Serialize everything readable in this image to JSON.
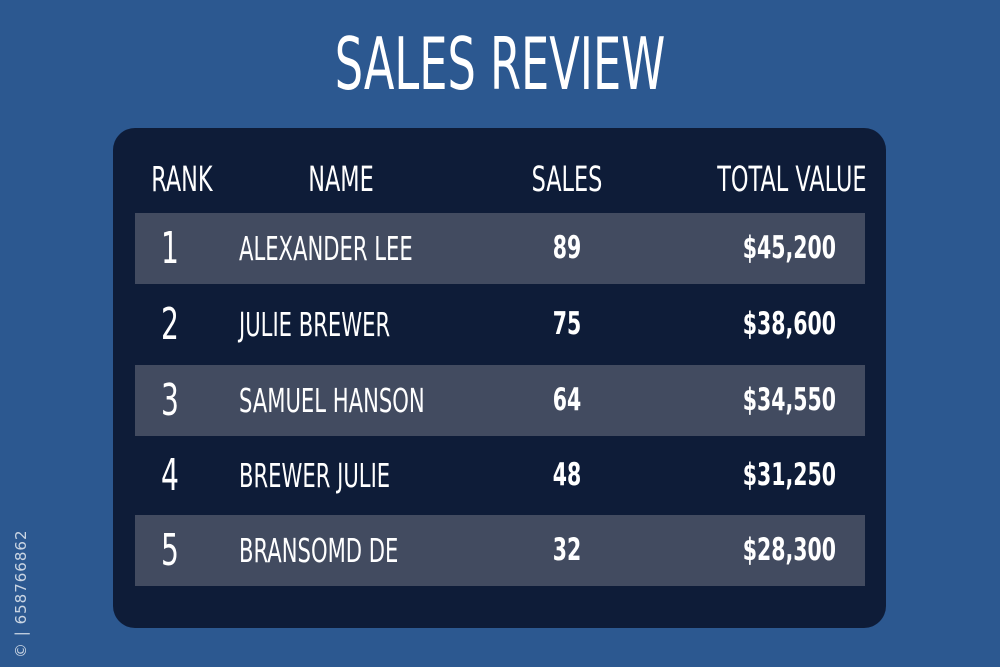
{
  "colors": {
    "background": "#2c5890",
    "panel": "#0e1c38",
    "row_highlight": "#424b60",
    "text": "#ffffff"
  },
  "title": "SALES REVIEW",
  "table": {
    "headers": {
      "rank": "RANK",
      "name": "NAME",
      "sales": "SALES",
      "total_value": "TOTAL VALUE"
    },
    "rows": [
      {
        "rank": "1",
        "name": "ALEXANDER LEE",
        "sales": "89",
        "total_value": "$45,200",
        "highlighted": true
      },
      {
        "rank": "2",
        "name": "JULIE BREWER",
        "sales": "75",
        "total_value": "$38,600",
        "highlighted": false
      },
      {
        "rank": "3",
        "name": "SAMUEL HANSON",
        "sales": "64",
        "total_value": "$34,550",
        "highlighted": true
      },
      {
        "rank": "4",
        "name": "BREWER JULIE",
        "sales": "48",
        "total_value": "$31,250",
        "highlighted": false
      },
      {
        "rank": "5",
        "name": "BRANSOMD DE",
        "sales": "32",
        "total_value": "$28,300",
        "highlighted": true
      }
    ]
  },
  "watermark_id": "658766862"
}
